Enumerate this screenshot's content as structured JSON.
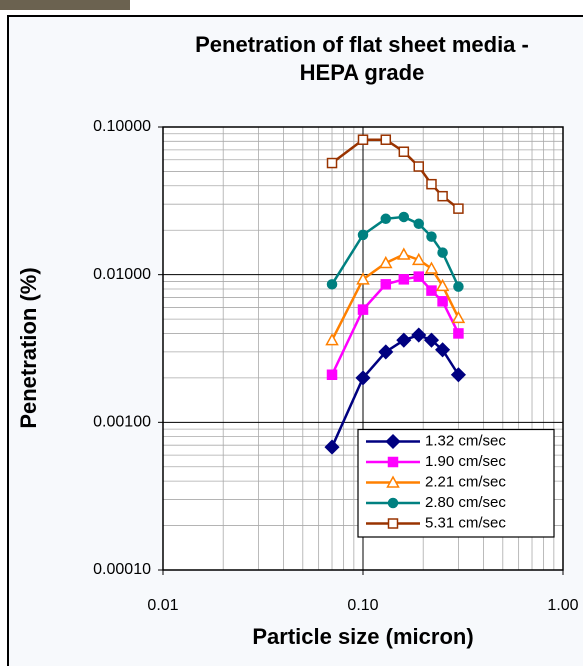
{
  "chart_data": {
    "type": "line",
    "title": "Penetration of flat sheet media - HEPA grade",
    "x_label": "Particle size (micron)",
    "y_label": "Penetration (%)",
    "x_log": true,
    "y_log": true,
    "grid": true,
    "legend": "lower right",
    "xlim": [
      0.01,
      1
    ],
    "xticks": [
      0.01,
      {
        "value": 0.1,
        "label": "0.10"
      },
      {
        "value": 1,
        "label": "1.00"
      }
    ],
    "ylim": [
      0.0001,
      0.1
    ],
    "yticks": [
      {
        "value": 0.0001,
        "label": "0.00010"
      },
      {
        "value": 0.001,
        "label": "0.00100"
      },
      {
        "value": 0.01,
        "label": "0.01000"
      },
      {
        "value": 0.1,
        "label": "0.10000"
      }
    ],
    "x": [
      0.07,
      0.1,
      0.13,
      0.16,
      0.19,
      0.22,
      0.25,
      0.3
    ],
    "series": [
      {
        "name": "1.32 cm/sec",
        "color": "#000080",
        "marker": "diamond",
        "values": [
          0.00068,
          0.002,
          0.003,
          0.0036,
          0.0039,
          0.0036,
          0.0031,
          0.0021
        ]
      },
      {
        "name": "1.90 cm/sec",
        "color": "#ff00ff",
        "marker": "square",
        "values": [
          0.0021,
          0.0058,
          0.0086,
          0.0093,
          0.0097,
          0.0078,
          0.0066,
          0.004
        ]
      },
      {
        "name": "2.21 cm/sec",
        "color": "#ff8000",
        "marker": "triangle",
        "values": [
          0.0036,
          0.0093,
          0.012,
          0.0137,
          0.0126,
          0.011,
          0.0084,
          0.0051
        ]
      },
      {
        "name": "2.80 cm/sec",
        "color": "#008080",
        "marker": "circle",
        "values": [
          0.0086,
          0.0186,
          0.0239,
          0.0246,
          0.0221,
          0.0181,
          0.0141,
          0.0083
        ]
      },
      {
        "name": "5.31 cm/sec",
        "color": "#993300",
        "marker": "open-square",
        "values": [
          0.057,
          0.082,
          0.082,
          0.068,
          0.054,
          0.041,
          0.034,
          0.028
        ]
      }
    ]
  }
}
